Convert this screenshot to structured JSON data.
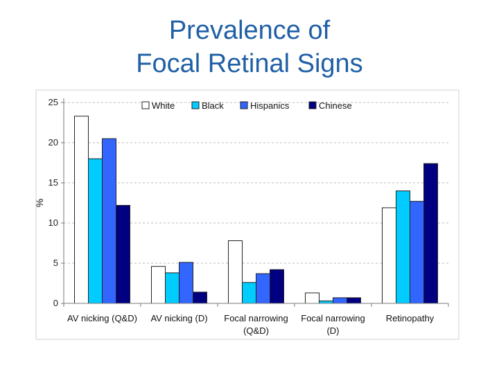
{
  "title": {
    "line1": "Prevalence of",
    "line2": "Focal Retinal Signs"
  },
  "chart_data": {
    "type": "bar",
    "title": "Prevalence of Focal Retinal Signs",
    "xlabel": "",
    "ylabel": "%",
    "ylim": [
      0,
      25
    ],
    "yticks": [
      0,
      5,
      10,
      15,
      20,
      25
    ],
    "grid": true,
    "legend_position": "top",
    "categories": [
      [
        "AV nicking (Q&D)"
      ],
      [
        "AV nicking (D)"
      ],
      [
        "Focal narrowing",
        "(Q&D)"
      ],
      [
        "Focal narrowing",
        "(D)"
      ],
      [
        "Retinopathy"
      ]
    ],
    "series": [
      {
        "name": "White",
        "color": "#ffffff",
        "values": [
          23.3,
          4.6,
          7.8,
          1.3,
          11.9
        ]
      },
      {
        "name": "Black",
        "color": "#00ccff",
        "values": [
          18.0,
          3.8,
          2.6,
          0.3,
          14.0
        ]
      },
      {
        "name": "Hispanics",
        "color": "#3366ff",
        "values": [
          20.5,
          5.1,
          3.7,
          0.7,
          12.7
        ]
      },
      {
        "name": "Chinese",
        "color": "#000080",
        "values": [
          12.2,
          1.4,
          4.2,
          0.7,
          17.4
        ]
      }
    ]
  }
}
